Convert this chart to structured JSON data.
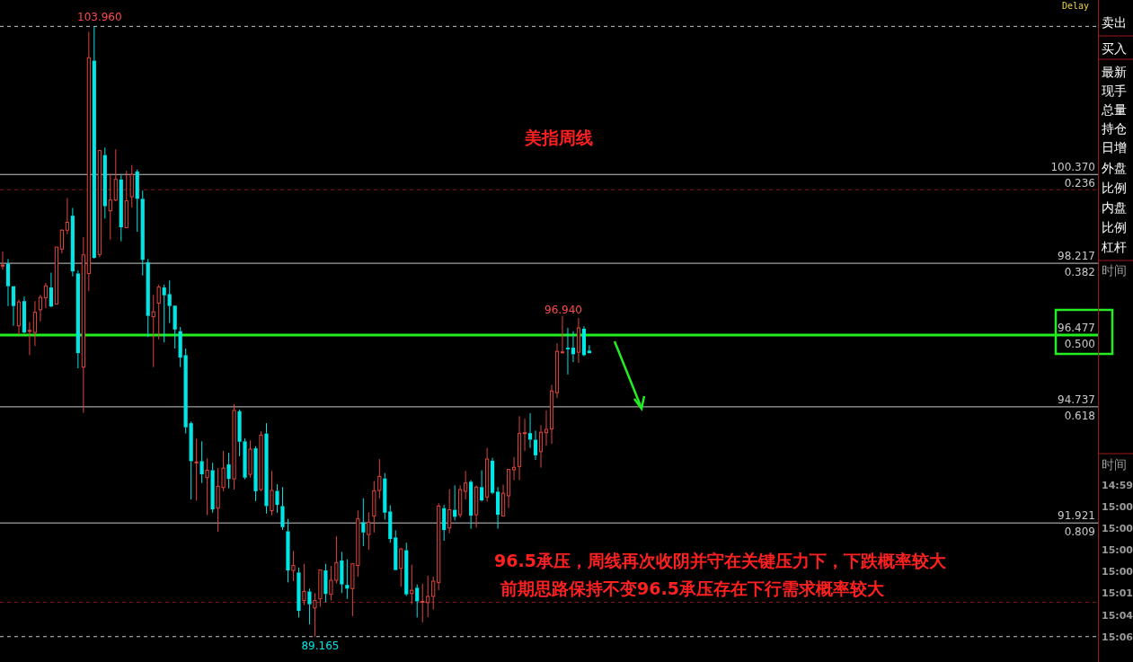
{
  "chart_data": [
    {
      "type": "candlestick",
      "title": "美指周线",
      "categories": [
        null,
        null,
        null,
        null,
        null,
        null,
        null,
        null,
        null,
        null,
        null,
        null,
        null,
        null,
        null,
        null,
        null,
        null,
        null,
        null,
        null,
        null,
        null,
        null,
        null,
        null,
        null,
        null,
        null,
        null,
        null,
        null,
        null,
        null,
        null,
        null,
        null,
        null,
        null,
        null,
        null,
        null,
        null,
        null,
        null,
        null,
        null,
        null,
        null,
        null,
        null,
        null,
        null,
        null,
        null,
        null,
        null,
        null,
        null,
        null,
        null,
        null,
        null,
        null,
        null,
        null,
        null,
        null,
        null,
        null,
        null,
        null,
        null,
        null,
        null,
        null,
        null,
        null,
        null,
        null,
        null,
        null,
        null,
        null,
        null,
        null,
        null,
        null,
        null,
        null,
        null,
        null,
        null,
        null,
        null,
        null,
        null,
        null,
        null,
        null,
        null,
        null,
        null,
        null,
        null,
        null,
        null,
        null,
        null,
        null,
        null,
        null,
        null,
        null,
        null,
        null,
        null,
        null,
        null,
        null,
        null,
        null,
        null,
        null,
        null,
        null,
        null,
        null,
        null,
        null,
        null,
        null,
        null,
        null,
        null,
        null,
        null,
        null,
        null,
        null,
        null,
        null,
        null,
        null,
        null,
        null,
        null,
        null,
        null,
        null,
        null,
        null,
        null,
        null,
        null,
        null,
        null,
        null,
        null,
        null,
        null,
        null,
        null,
        null,
        null,
        null,
        null,
        null,
        null,
        null,
        null,
        null,
        null,
        null,
        null,
        null,
        null,
        null,
        null,
        null,
        null,
        null,
        null,
        null,
        null,
        null,
        null,
        null,
        null,
        null,
        null,
        null,
        null,
        null,
        null,
        null,
        null,
        null,
        null,
        null,
        null,
        null,
        null,
        null
      ],
      "ohlc": [
        [
          98.17,
          98.5,
          98.06,
          98.17
        ],
        [
          98.21,
          98.32,
          97.18,
          97.66
        ],
        [
          97.66,
          97.66,
          96.7,
          97.18
        ],
        [
          96.7,
          97.34,
          96.48,
          97.28
        ],
        [
          97.3,
          97.41,
          96.52,
          96.54
        ],
        [
          96.58,
          96.79,
          95.99,
          96.59
        ],
        [
          96.54,
          97.3,
          96.21,
          97.03
        ],
        [
          97.09,
          97.45,
          96.81,
          97.39
        ],
        [
          97.38,
          97.74,
          97.13,
          97.67
        ],
        [
          97.63,
          97.99,
          97.15,
          97.17
        ],
        [
          97.23,
          98.61,
          97.23,
          98.61
        ],
        [
          98.56,
          99.04,
          98.46,
          99.02
        ],
        [
          99.02,
          99.8,
          98.92,
          99.21
        ],
        [
          99.37,
          99.56,
          97.9,
          98.02
        ],
        [
          97.97,
          98.04,
          95.67,
          96.04
        ],
        [
          95.7,
          98.85,
          94.59,
          98.42
        ],
        [
          97.97,
          103.83,
          97.54,
          103.2
        ],
        [
          103.13,
          103.96,
          98.33,
          98.35
        ],
        [
          98.43,
          100.95,
          98.37,
          100.95
        ],
        [
          100.84,
          101.02,
          99.3,
          99.6
        ],
        [
          99.49,
          100.38,
          98.79,
          99.75
        ],
        [
          99.75,
          100.98,
          99.72,
          100.25
        ],
        [
          100.25,
          100.35,
          98.75,
          99.09
        ],
        [
          99.08,
          100.46,
          99.08,
          99.73
        ],
        [
          99.83,
          100.6,
          99.57,
          100.37
        ],
        [
          100.44,
          100.49,
          98.98,
          99.78
        ],
        [
          99.78,
          99.98,
          97.92,
          98.3
        ],
        [
          98.24,
          98.32,
          96.43,
          96.94
        ],
        [
          96.92,
          97.45,
          95.7,
          97.04
        ],
        [
          97.25,
          97.7,
          96.37,
          97.64
        ],
        [
          97.63,
          97.7,
          96.3,
          97.44
        ],
        [
          97.47,
          97.8,
          96.77,
          97.18
        ],
        [
          97.19,
          97.19,
          96.15,
          96.61
        ],
        [
          96.57,
          96.67,
          95.7,
          95.93
        ],
        [
          95.99,
          96.15,
          94.09,
          94.24
        ],
        [
          94.34,
          94.38,
          92.49,
          93.42
        ],
        [
          93.38,
          93.96,
          92.46,
          93.4
        ],
        [
          93.42,
          93.9,
          92.89,
          93.1
        ],
        [
          93.02,
          93.49,
          92.11,
          93.2
        ],
        [
          93.2,
          93.38,
          92.17,
          92.25
        ],
        [
          92.28,
          93.25,
          91.71,
          92.81
        ],
        [
          92.78,
          93.67,
          92.69,
          93.25
        ],
        [
          93.34,
          93.62,
          92.76,
          92.99
        ],
        [
          92.99,
          94.8,
          92.73,
          94.65
        ],
        [
          94.63,
          94.67,
          93.54,
          93.89
        ],
        [
          93.9,
          93.97,
          92.98,
          93.02
        ],
        [
          93.1,
          93.92,
          93.02,
          93.71
        ],
        [
          93.73,
          93.78,
          92.45,
          92.69
        ],
        [
          92.73,
          94.14,
          92.69,
          94.05
        ],
        [
          94.09,
          94.34,
          92.15,
          92.33
        ],
        [
          92.22,
          93.18,
          92.11,
          92.71
        ],
        [
          92.7,
          92.86,
          92.17,
          92.36
        ],
        [
          92.33,
          92.79,
          91.75,
          91.82
        ],
        [
          91.72,
          92.02,
          90.48,
          90.77
        ],
        [
          90.77,
          91.24,
          90.51,
          90.89
        ],
        [
          90.72,
          90.84,
          89.63,
          89.79
        ],
        [
          90.04,
          90.93,
          89.93,
          90.26
        ],
        [
          90.26,
          90.33,
          89.46,
          89.95
        ],
        [
          89.86,
          90.22,
          89.165,
          90.04
        ],
        [
          90.08,
          90.78,
          89.89,
          90.78
        ],
        [
          90.77,
          90.93,
          90.0,
          90.2
        ],
        [
          90.19,
          90.88,
          90.04,
          90.53
        ],
        [
          90.53,
          91.6,
          90.45,
          90.96
        ],
        [
          91.01,
          91.22,
          90.22,
          90.43
        ],
        [
          90.42,
          91.04,
          90.08,
          90.33
        ],
        [
          90.33,
          90.95,
          89.66,
          90.93
        ],
        [
          90.89,
          92.22,
          90.62,
          92.02
        ],
        [
          91.94,
          92.52,
          91.36,
          91.69
        ],
        [
          91.64,
          92.18,
          91.27,
          91.94
        ],
        [
          92.09,
          92.94,
          91.69,
          92.7
        ],
        [
          92.71,
          93.47,
          92.51,
          93.05
        ],
        [
          93.0,
          93.13,
          92.0,
          92.17
        ],
        [
          92.2,
          92.35,
          91.44,
          91.53
        ],
        [
          91.57,
          91.74,
          90.77,
          90.78
        ],
        [
          90.82,
          91.31,
          90.38,
          91.29
        ],
        [
          91.26,
          91.44,
          90.15,
          90.19
        ],
        [
          90.21,
          90.91,
          89.95,
          90.29
        ],
        [
          90.35,
          90.43,
          89.63,
          90.02
        ],
        [
          90.01,
          90.45,
          89.51,
          90.02
        ],
        [
          89.99,
          90.64,
          89.64,
          90.14
        ],
        [
          90.14,
          90.62,
          89.82,
          90.51
        ],
        [
          90.48,
          92.4,
          90.29,
          92.33
        ],
        [
          92.28,
          92.36,
          91.49,
          91.75
        ],
        [
          91.8,
          92.74,
          91.67,
          92.24
        ],
        [
          92.24,
          92.83,
          91.98,
          92.07
        ],
        [
          92.12,
          92.83,
          92.05,
          92.73
        ],
        [
          92.69,
          93.18,
          92.49,
          92.89
        ],
        [
          92.92,
          92.96,
          91.78,
          92.1
        ],
        [
          92.12,
          92.83,
          91.81,
          92.79
        ],
        [
          92.79,
          93.2,
          92.44,
          92.47
        ],
        [
          92.55,
          93.74,
          92.44,
          93.47
        ],
        [
          93.43,
          93.5,
          92.62,
          92.65
        ],
        [
          92.68,
          92.79,
          91.78,
          92.12
        ],
        [
          92.09,
          92.85,
          92.09,
          92.64
        ],
        [
          92.58,
          93.22,
          92.28,
          93.22
        ],
        [
          93.21,
          93.52,
          92.96,
          93.27
        ],
        [
          93.29,
          94.51,
          92.96,
          94.09
        ],
        [
          94.1,
          94.45,
          93.67,
          94.11
        ],
        [
          94.1,
          94.58,
          93.74,
          93.94
        ],
        [
          93.94,
          94.16,
          93.45,
          93.56
        ],
        [
          93.65,
          94.29,
          93.26,
          94.12
        ],
        [
          94.11,
          94.65,
          93.79,
          94.19
        ],
        [
          94.2,
          95.27,
          93.84,
          95.12
        ],
        [
          95.08,
          96.28,
          94.95,
          96.08
        ],
        [
          96.06,
          96.94,
          96.03,
          96.07
        ],
        [
          96.17,
          96.65,
          95.52,
          96.13
        ],
        [
          96.17,
          96.57,
          95.82,
          96.01
        ],
        [
          96.06,
          96.89,
          95.8,
          96.65
        ],
        [
          96.63,
          96.69,
          95.96,
          95.99
        ],
        [
          96.1,
          96.23,
          96.03,
          96.04
        ],
        null,
        null,
        null,
        null,
        null,
        null,
        null,
        null,
        null,
        null,
        null,
        null,
        null,
        null,
        null,
        null,
        null,
        null,
        null,
        null,
        null,
        null,
        null,
        null,
        null,
        null,
        null,
        null,
        null,
        null,
        null,
        null,
        null,
        null,
        null,
        null,
        null,
        null,
        null,
        null,
        null,
        null,
        null,
        null,
        null,
        null,
        null,
        null,
        null,
        null,
        null,
        null,
        null,
        null,
        null,
        null,
        null,
        null,
        null,
        null,
        null,
        null,
        null,
        null,
        null,
        null,
        null,
        null,
        null,
        null,
        null,
        null,
        null,
        null,
        null,
        null,
        null,
        null,
        null,
        null,
        null,
        null,
        null,
        null,
        null,
        null,
        null,
        null,
        null,
        null,
        null,
        null,
        null,
        null
      ],
      "ylim": [
        88.55,
        104.6
      ],
      "yticks": [
        {
          "value": 100.37,
          "label": "100.370"
        },
        {
          "value": 98.217,
          "label": "98.217"
        },
        {
          "value": 96.477,
          "label": "96.477"
        },
        {
          "value": 94.737,
          "label": "94.737"
        },
        {
          "value": 91.921,
          "label": "91.921"
        }
      ],
      "y2lim": [
        1.0376,
        -0.0509
      ],
      "y2ticks": [
        {
          "value": 0.236,
          "label": "0.236"
        },
        {
          "value": 0.382,
          "label": "0.382"
        },
        {
          "value": 0.5,
          "label": "0.500"
        },
        {
          "value": 0.618,
          "label": "0.618"
        },
        {
          "value": 0.809,
          "label": "0.809"
        }
      ],
      "grid": false,
      "ref_lines": [
        {
          "axis": "y",
          "value": 103.96,
          "line_style": "dashed"
        },
        {
          "axis": "y",
          "value": 89.165,
          "line_style": "dashed"
        },
        {
          "axis": "y",
          "value": 100.0,
          "color": "#8b1a1a",
          "line_style": "dashed"
        },
        {
          "axis": "y",
          "value": 90.0,
          "color": "#8b1a1a",
          "line_style": "dashed"
        },
        {
          "axis": "y",
          "value": 100.37
        },
        {
          "axis": "y",
          "value": 98.217
        },
        {
          "axis": "y",
          "value": 94.737
        },
        {
          "axis": "y",
          "value": 91.921
        },
        {
          "axis": "y",
          "value": 96.477,
          "color": "#22ee22",
          "line_style": "solid"
        }
      ],
      "annotations": [
        "Delay",
        "96.5承压，周线再次收阴并守在关键压力下，下跌概率较大",
        "前期思路保持不变96.5承压存在下行需求概率较大",
        "96.940",
        {
          "text": "103.960",
          "y": 103.96
        },
        {
          "text": "89.165",
          "y": 89.165
        }
      ]
    },
    {
      "type": "other",
      "annotations": [
        "卖出",
        "买入",
        "最新",
        "现手",
        "总量",
        "持仓",
        "日增",
        "外盘",
        "比例",
        "内盘",
        "比例",
        "杠杆",
        "时间",
        "时间",
        "14:59",
        "15:00",
        "15:00",
        "15:00",
        "15:00",
        "15:01",
        "15:04",
        "15:06"
      ]
    }
  ]
}
